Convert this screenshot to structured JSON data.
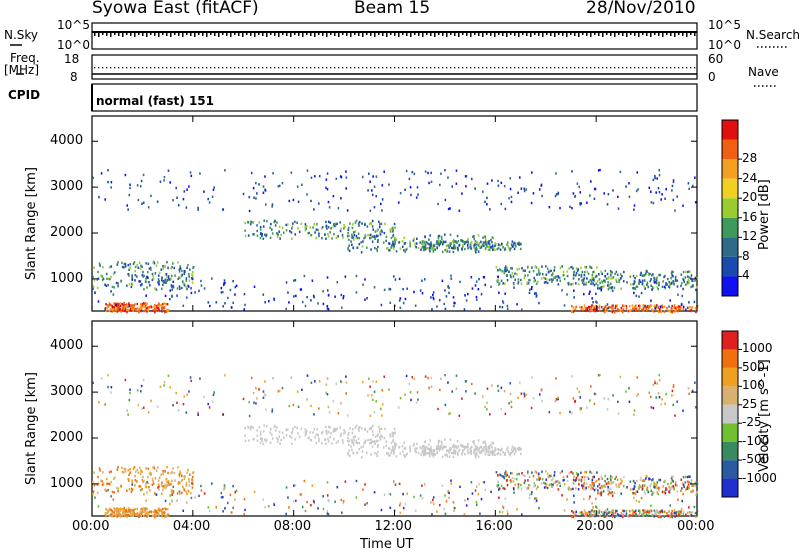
{
  "header": {
    "left": "Syowa East (fitACF)",
    "center": "Beam 15",
    "right": "28/Nov/2010"
  },
  "noise_panel": {
    "left_label": "N.Sky",
    "right_label": "N.Search",
    "left_ticks": [
      "10^5",
      "10^0"
    ],
    "right_ticks": [
      "10^5",
      "10^0"
    ]
  },
  "freq_panel": {
    "left_label_1": "Freq.",
    "left_label_2": "[MHz]",
    "right_label": "Nave",
    "left_ticks": [
      "18",
      "8"
    ],
    "right_ticks": [
      "60",
      "0"
    ]
  },
  "cpid_panel": {
    "label": "CPID",
    "mode_text": "normal (fast) 151"
  },
  "colors": {
    "frame": "#000000",
    "background": "#ffffff"
  },
  "chart_data": [
    {
      "type": "heatmap",
      "title": "",
      "xlabel": "",
      "ylabel": "Slant Range [km]",
      "xlim": [
        "00:00",
        "24:00"
      ],
      "ylim": [
        300,
        4550
      ],
      "y_ticks": [
        "1000",
        "2000",
        "3000",
        "4000"
      ],
      "colorbar": {
        "label": "Power [dB]",
        "ticks": [
          "4",
          "8",
          "12",
          "16",
          "20",
          "24",
          "28"
        ],
        "colors": [
          "#1010f0",
          "#1a4ab0",
          "#2f6a88",
          "#3e9a5a",
          "#9acc30",
          "#f0d020",
          "#f5a020",
          "#f06010",
          "#e01010"
        ]
      }
    },
    {
      "type": "heatmap",
      "title": "",
      "xlabel": "Time UT",
      "ylabel": "Slant Range [km]",
      "x_ticks": [
        "00:00",
        "04:00",
        "08:00",
        "12:00",
        "16:00",
        "20:00",
        "00:00"
      ],
      "ylim": [
        300,
        4550
      ],
      "y_ticks": [
        "1000",
        "2000",
        "3000",
        "4000"
      ],
      "colorbar": {
        "label": "Velocity [m s^-1]",
        "ticks": [
          "1000",
          "500",
          "100",
          "25",
          "-25",
          "-100",
          "-500",
          "-1000"
        ],
        "colors": [
          "#2030d0",
          "#2a5aa0",
          "#3a8a60",
          "#70c030",
          "#c8c8c8",
          "#d8b070",
          "#f0a020",
          "#f07010",
          "#e02020"
        ]
      }
    }
  ]
}
